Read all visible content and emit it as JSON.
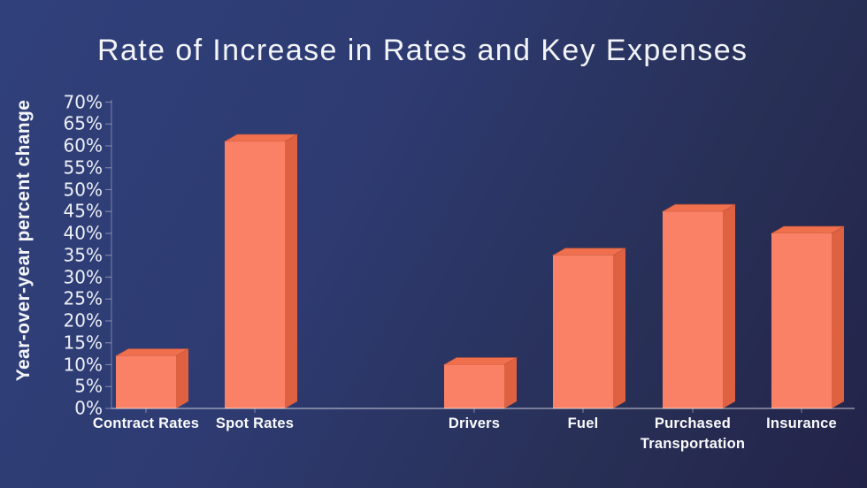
{
  "chart_data": {
    "type": "bar",
    "title": "Rate of Increase in Rates and Key Expenses",
    "ylabel": "Year-over-year percent change",
    "xlabel": "",
    "categories": [
      "Contract Rates",
      "Spot Rates",
      "Drivers",
      "Fuel",
      "Purchased Transportation",
      "Insurance"
    ],
    "values": [
      12,
      61,
      10,
      35,
      45,
      40
    ],
    "unit": "%",
    "ylim": [
      0,
      70
    ],
    "ytick_step": 5,
    "ytick_labels": [
      "0%",
      "5%",
      "10%",
      "15%",
      "20%",
      "25%",
      "30%",
      "35%",
      "40%",
      "45%",
      "50%",
      "55%",
      "60%",
      "65%",
      "70%"
    ],
    "grid": false,
    "legend_position": "none",
    "bar_style": "3d-prism",
    "group_gap_after_category": "Spot Rates"
  },
  "colors": {
    "background_top": "#30407a",
    "background_bottom": "#232348",
    "bar_front": "#fb8166",
    "bar_top": "#f0704e",
    "bar_side": "#de6142",
    "bar_outline": "#b84c34",
    "axis_line": "#aab0c8",
    "text": "#f3f4f8"
  }
}
